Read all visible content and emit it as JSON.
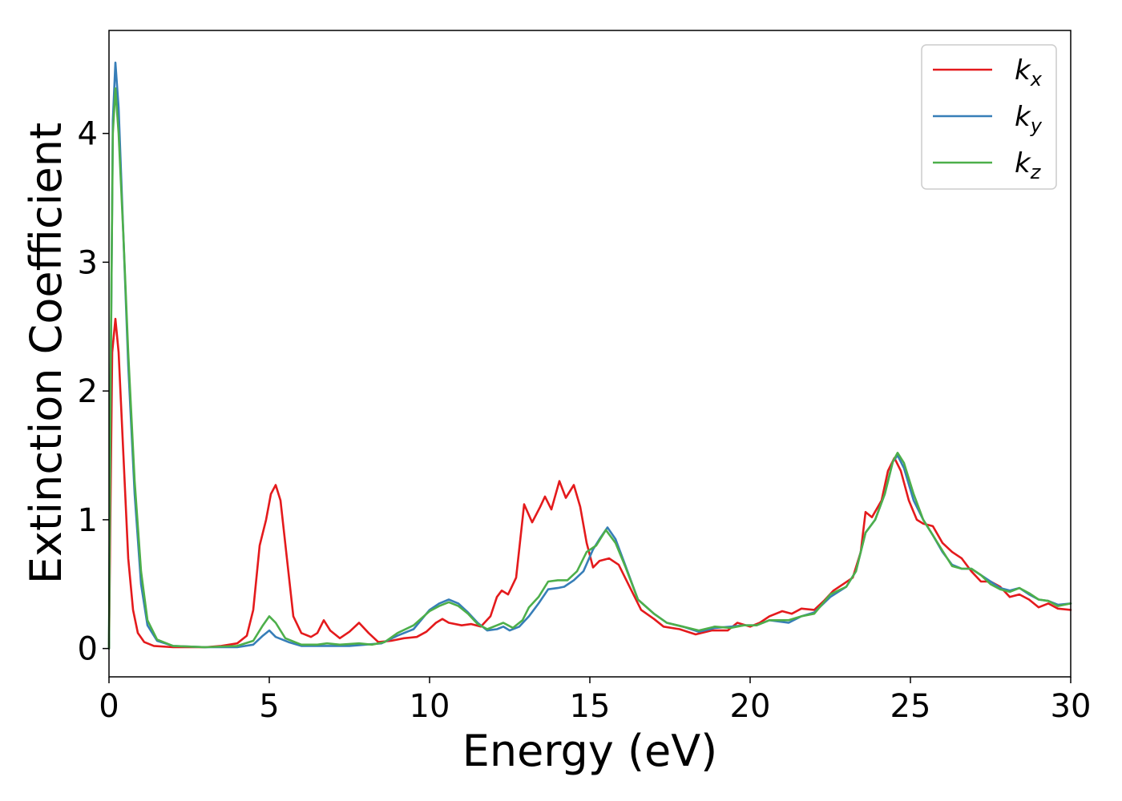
{
  "chart_data": {
    "type": "line",
    "xlabel": "Energy (eV)",
    "ylabel": "Extinction Coefficient",
    "xlim": [
      0,
      30
    ],
    "ylim": [
      -0.22,
      4.8
    ],
    "xticks": [
      0,
      5,
      10,
      15,
      20,
      25,
      30
    ],
    "yticks": [
      0,
      1,
      2,
      3,
      4
    ],
    "grid": false,
    "legend_position": "top-right",
    "series": [
      {
        "name": "k_x",
        "label_main": "k",
        "label_sub": "x",
        "color": "#e41a1c",
        "points": [
          [
            0,
            0
          ],
          [
            0.05,
            1.2
          ],
          [
            0.1,
            2.3
          ],
          [
            0.2,
            2.56
          ],
          [
            0.3,
            2.3
          ],
          [
            0.45,
            1.5
          ],
          [
            0.6,
            0.7
          ],
          [
            0.75,
            0.3
          ],
          [
            0.9,
            0.12
          ],
          [
            1.1,
            0.05
          ],
          [
            1.4,
            0.02
          ],
          [
            2,
            0.01
          ],
          [
            3,
            0.01
          ],
          [
            3.5,
            0.02
          ],
          [
            4,
            0.04
          ],
          [
            4.3,
            0.1
          ],
          [
            4.5,
            0.3
          ],
          [
            4.7,
            0.8
          ],
          [
            4.9,
            1.0
          ],
          [
            5.05,
            1.2
          ],
          [
            5.2,
            1.27
          ],
          [
            5.35,
            1.15
          ],
          [
            5.55,
            0.7
          ],
          [
            5.75,
            0.25
          ],
          [
            6,
            0.12
          ],
          [
            6.3,
            0.09
          ],
          [
            6.5,
            0.12
          ],
          [
            6.7,
            0.22
          ],
          [
            6.9,
            0.14
          ],
          [
            7.2,
            0.08
          ],
          [
            7.5,
            0.13
          ],
          [
            7.8,
            0.2
          ],
          [
            8.1,
            0.12
          ],
          [
            8.4,
            0.05
          ],
          [
            8.8,
            0.06
          ],
          [
            9.2,
            0.08
          ],
          [
            9.6,
            0.09
          ],
          [
            9.9,
            0.13
          ],
          [
            10.2,
            0.2
          ],
          [
            10.4,
            0.23
          ],
          [
            10.6,
            0.2
          ],
          [
            11,
            0.18
          ],
          [
            11.3,
            0.19
          ],
          [
            11.6,
            0.17
          ],
          [
            11.9,
            0.25
          ],
          [
            12.1,
            0.4
          ],
          [
            12.25,
            0.45
          ],
          [
            12.45,
            0.42
          ],
          [
            12.7,
            0.55
          ],
          [
            12.95,
            1.12
          ],
          [
            13.2,
            0.98
          ],
          [
            13.45,
            1.1
          ],
          [
            13.6,
            1.18
          ],
          [
            13.8,
            1.08
          ],
          [
            14.05,
            1.3
          ],
          [
            14.25,
            1.17
          ],
          [
            14.5,
            1.27
          ],
          [
            14.7,
            1.1
          ],
          [
            14.9,
            0.82
          ],
          [
            15.1,
            0.63
          ],
          [
            15.3,
            0.68
          ],
          [
            15.6,
            0.7
          ],
          [
            15.9,
            0.65
          ],
          [
            16.2,
            0.5
          ],
          [
            16.6,
            0.3
          ],
          [
            17,
            0.23
          ],
          [
            17.3,
            0.17
          ],
          [
            17.8,
            0.15
          ],
          [
            18.3,
            0.11
          ],
          [
            18.8,
            0.14
          ],
          [
            19.3,
            0.14
          ],
          [
            19.6,
            0.2
          ],
          [
            20,
            0.17
          ],
          [
            20.3,
            0.2
          ],
          [
            20.6,
            0.25
          ],
          [
            21,
            0.29
          ],
          [
            21.3,
            0.27
          ],
          [
            21.6,
            0.31
          ],
          [
            22,
            0.3
          ],
          [
            22.3,
            0.37
          ],
          [
            22.6,
            0.45
          ],
          [
            22.9,
            0.5
          ],
          [
            23.2,
            0.55
          ],
          [
            23.45,
            0.75
          ],
          [
            23.6,
            1.06
          ],
          [
            23.8,
            1.02
          ],
          [
            24.1,
            1.15
          ],
          [
            24.3,
            1.38
          ],
          [
            24.5,
            1.48
          ],
          [
            24.7,
            1.38
          ],
          [
            24.95,
            1.15
          ],
          [
            25.2,
            1.0
          ],
          [
            25.4,
            0.97
          ],
          [
            25.7,
            0.95
          ],
          [
            26,
            0.82
          ],
          [
            26.3,
            0.75
          ],
          [
            26.6,
            0.7
          ],
          [
            26.9,
            0.6
          ],
          [
            27.2,
            0.52
          ],
          [
            27.5,
            0.52
          ],
          [
            27.8,
            0.48
          ],
          [
            28.1,
            0.4
          ],
          [
            28.4,
            0.42
          ],
          [
            28.7,
            0.38
          ],
          [
            29,
            0.32
          ],
          [
            29.3,
            0.35
          ],
          [
            29.6,
            0.31
          ],
          [
            30,
            0.3
          ]
        ]
      },
      {
        "name": "k_y",
        "label_main": "k",
        "label_sub": "y",
        "color": "#377eb8",
        "points": [
          [
            0,
            0
          ],
          [
            0.05,
            2.0
          ],
          [
            0.12,
            4.1
          ],
          [
            0.2,
            4.55
          ],
          [
            0.3,
            4.2
          ],
          [
            0.45,
            3.2
          ],
          [
            0.6,
            2.2
          ],
          [
            0.8,
            1.2
          ],
          [
            1,
            0.5
          ],
          [
            1.2,
            0.18
          ],
          [
            1.5,
            0.06
          ],
          [
            2,
            0.02
          ],
          [
            3,
            0.01
          ],
          [
            4,
            0.01
          ],
          [
            4.5,
            0.03
          ],
          [
            4.8,
            0.1
          ],
          [
            5,
            0.14
          ],
          [
            5.2,
            0.09
          ],
          [
            5.6,
            0.05
          ],
          [
            6,
            0.02
          ],
          [
            6.5,
            0.02
          ],
          [
            7,
            0.02
          ],
          [
            7.5,
            0.02
          ],
          [
            8,
            0.03
          ],
          [
            8.5,
            0.04
          ],
          [
            9,
            0.1
          ],
          [
            9.5,
            0.15
          ],
          [
            10,
            0.3
          ],
          [
            10.3,
            0.35
          ],
          [
            10.6,
            0.38
          ],
          [
            10.9,
            0.35
          ],
          [
            11.2,
            0.28
          ],
          [
            11.5,
            0.2
          ],
          [
            11.8,
            0.14
          ],
          [
            12.1,
            0.15
          ],
          [
            12.3,
            0.17
          ],
          [
            12.5,
            0.14
          ],
          [
            12.8,
            0.17
          ],
          [
            13.1,
            0.25
          ],
          [
            13.4,
            0.35
          ],
          [
            13.7,
            0.46
          ],
          [
            14,
            0.47
          ],
          [
            14.2,
            0.48
          ],
          [
            14.5,
            0.53
          ],
          [
            14.8,
            0.6
          ],
          [
            15.1,
            0.77
          ],
          [
            15.3,
            0.85
          ],
          [
            15.55,
            0.94
          ],
          [
            15.8,
            0.85
          ],
          [
            16.1,
            0.65
          ],
          [
            16.5,
            0.38
          ],
          [
            17,
            0.27
          ],
          [
            17.4,
            0.2
          ],
          [
            17.9,
            0.17
          ],
          [
            18.4,
            0.13
          ],
          [
            18.9,
            0.16
          ],
          [
            19.4,
            0.17
          ],
          [
            19.8,
            0.18
          ],
          [
            20.2,
            0.18
          ],
          [
            20.6,
            0.22
          ],
          [
            21.2,
            0.2
          ],
          [
            21.6,
            0.25
          ],
          [
            22,
            0.28
          ],
          [
            22.5,
            0.4
          ],
          [
            23,
            0.48
          ],
          [
            23.3,
            0.6
          ],
          [
            23.6,
            0.9
          ],
          [
            23.9,
            1.0
          ],
          [
            24.2,
            1.2
          ],
          [
            24.45,
            1.45
          ],
          [
            24.6,
            1.5
          ],
          [
            24.8,
            1.4
          ],
          [
            25.1,
            1.15
          ],
          [
            25.4,
            1.0
          ],
          [
            25.7,
            0.88
          ],
          [
            26,
            0.75
          ],
          [
            26.3,
            0.65
          ],
          [
            26.6,
            0.62
          ],
          [
            26.9,
            0.62
          ],
          [
            27.2,
            0.57
          ],
          [
            27.5,
            0.52
          ],
          [
            27.8,
            0.47
          ],
          [
            28.1,
            0.45
          ],
          [
            28.4,
            0.47
          ],
          [
            28.7,
            0.42
          ],
          [
            29,
            0.38
          ],
          [
            29.3,
            0.37
          ],
          [
            29.6,
            0.34
          ],
          [
            30,
            0.35
          ]
        ]
      },
      {
        "name": "k_z",
        "label_main": "k",
        "label_sub": "z",
        "color": "#4daf4a",
        "points": [
          [
            0,
            0
          ],
          [
            0.05,
            2.1
          ],
          [
            0.12,
            4.0
          ],
          [
            0.2,
            4.35
          ],
          [
            0.3,
            4.0
          ],
          [
            0.45,
            3.2
          ],
          [
            0.6,
            2.3
          ],
          [
            0.8,
            1.3
          ],
          [
            1,
            0.6
          ],
          [
            1.2,
            0.22
          ],
          [
            1.5,
            0.07
          ],
          [
            2,
            0.02
          ],
          [
            3,
            0.01
          ],
          [
            4,
            0.02
          ],
          [
            4.5,
            0.06
          ],
          [
            4.8,
            0.18
          ],
          [
            5,
            0.25
          ],
          [
            5.2,
            0.2
          ],
          [
            5.5,
            0.08
          ],
          [
            6,
            0.03
          ],
          [
            6.5,
            0.03
          ],
          [
            6.8,
            0.04
          ],
          [
            7.2,
            0.03
          ],
          [
            7.8,
            0.04
          ],
          [
            8.2,
            0.03
          ],
          [
            8.6,
            0.05
          ],
          [
            9,
            0.12
          ],
          [
            9.5,
            0.18
          ],
          [
            10,
            0.29
          ],
          [
            10.3,
            0.33
          ],
          [
            10.6,
            0.36
          ],
          [
            10.9,
            0.33
          ],
          [
            11.2,
            0.27
          ],
          [
            11.5,
            0.19
          ],
          [
            11.8,
            0.15
          ],
          [
            12.1,
            0.18
          ],
          [
            12.3,
            0.2
          ],
          [
            12.6,
            0.16
          ],
          [
            12.9,
            0.22
          ],
          [
            13.1,
            0.32
          ],
          [
            13.4,
            0.4
          ],
          [
            13.7,
            0.52
          ],
          [
            14,
            0.53
          ],
          [
            14.3,
            0.53
          ],
          [
            14.6,
            0.6
          ],
          [
            14.9,
            0.75
          ],
          [
            15.2,
            0.8
          ],
          [
            15.5,
            0.92
          ],
          [
            15.8,
            0.82
          ],
          [
            16.1,
            0.64
          ],
          [
            16.5,
            0.38
          ],
          [
            17,
            0.27
          ],
          [
            17.4,
            0.2
          ],
          [
            17.9,
            0.17
          ],
          [
            18.4,
            0.14
          ],
          [
            18.9,
            0.17
          ],
          [
            19.4,
            0.16
          ],
          [
            19.8,
            0.18
          ],
          [
            20.2,
            0.18
          ],
          [
            20.6,
            0.22
          ],
          [
            21.2,
            0.22
          ],
          [
            21.6,
            0.25
          ],
          [
            22,
            0.27
          ],
          [
            22.5,
            0.42
          ],
          [
            23,
            0.48
          ],
          [
            23.3,
            0.6
          ],
          [
            23.6,
            0.9
          ],
          [
            23.9,
            1.0
          ],
          [
            24.2,
            1.2
          ],
          [
            24.45,
            1.45
          ],
          [
            24.6,
            1.52
          ],
          [
            24.8,
            1.44
          ],
          [
            25.1,
            1.2
          ],
          [
            25.4,
            1.0
          ],
          [
            25.7,
            0.88
          ],
          [
            26,
            0.76
          ],
          [
            26.3,
            0.64
          ],
          [
            26.6,
            0.62
          ],
          [
            26.9,
            0.62
          ],
          [
            27.2,
            0.57
          ],
          [
            27.5,
            0.5
          ],
          [
            27.8,
            0.46
          ],
          [
            28.1,
            0.44
          ],
          [
            28.4,
            0.47
          ],
          [
            28.7,
            0.43
          ],
          [
            29,
            0.38
          ],
          [
            29.3,
            0.37
          ],
          [
            29.6,
            0.33
          ],
          [
            30,
            0.35
          ]
        ]
      }
    ]
  }
}
